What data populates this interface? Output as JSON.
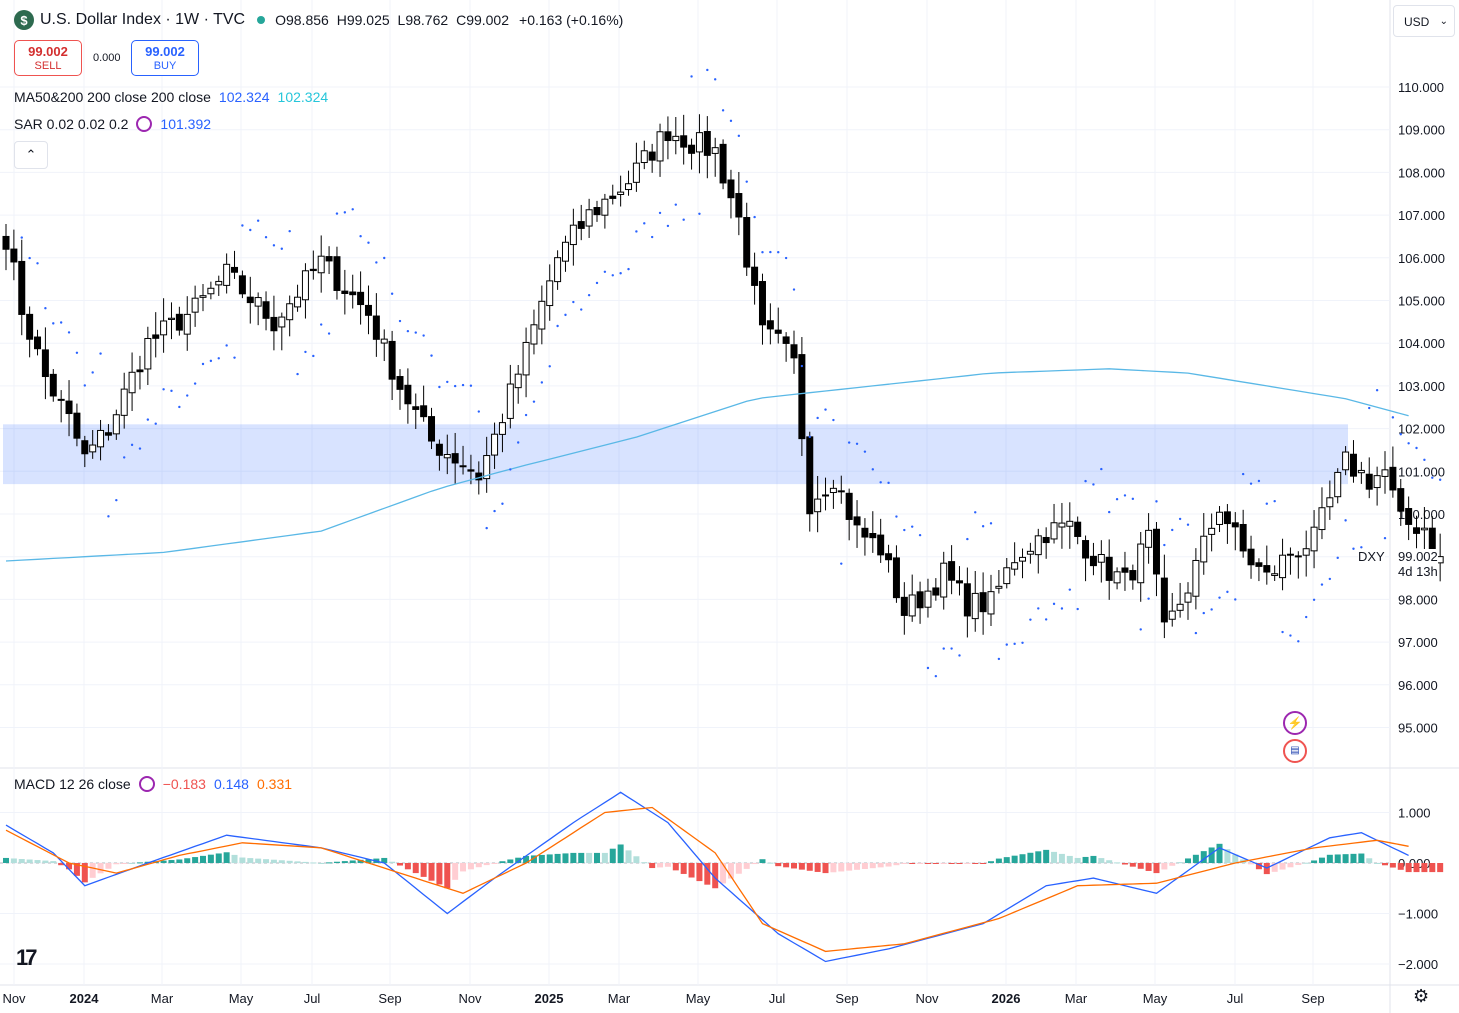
{
  "header": {
    "logo": "$",
    "symbol": "U.S. Dollar Index · 1W · TVC",
    "ohlc": {
      "o_label": "O",
      "o": "98.856",
      "h_label": "H",
      "h": "99.025",
      "l_label": "L",
      "l": "98.762",
      "c_label": "C",
      "c": "99.002"
    },
    "change": "+0.163 (+0.16%)"
  },
  "trade": {
    "sell_price": "99.002",
    "sell_label": "SELL",
    "spread": "0.000",
    "buy_price": "99.002",
    "buy_label": "BUY"
  },
  "indicators": {
    "ma": {
      "label": "MA50&200 200 close 200 close",
      "v1": "102.324",
      "v2": "102.324"
    },
    "sar": {
      "label": "SAR 0.02 0.02 0.2",
      "v": "101.392"
    },
    "macd": {
      "label": "MACD 12 26 close",
      "hist": "−0.183",
      "macd": "0.148",
      "signal": "0.331"
    }
  },
  "currency": "USD",
  "last": {
    "symbol": "DXY",
    "price": "99.002",
    "countdown": "4d 13h"
  },
  "colors": {
    "up": "#ffffff",
    "down": "#000000",
    "ma": "#5ab8e6",
    "sar": "#2962ff",
    "zone": "rgba(41,98,255,0.18)",
    "macd": "#2962ff",
    "signal": "#ff6d00",
    "hist_up_strong": "#26a69a",
    "hist_up_weak": "#b2dfdb",
    "hist_dn_strong": "#ef5350",
    "hist_dn_weak": "#ffcdd2"
  },
  "chart_data": {
    "type": "candlestick",
    "price_axis": {
      "ylim": [
        94.2,
        111.0
      ],
      "ticks": [
        "110.000",
        "109.000",
        "108.000",
        "107.000",
        "106.000",
        "105.000",
        "104.000",
        "103.000",
        "102.000",
        "101.000",
        "100.000",
        "99.000",
        "98.000",
        "97.000",
        "96.000",
        "95.000"
      ]
    },
    "macd_axis": {
      "ylim": [
        -2.1,
        1.6
      ],
      "ticks": [
        "1.000",
        "0.000",
        "−1.000",
        "−2.000"
      ]
    },
    "time_axis": [
      "Nov",
      "2024",
      "Mar",
      "May",
      "Jul",
      "Sep",
      "Nov",
      "2025",
      "Mar",
      "May",
      "Jul",
      "Sep",
      "Nov",
      "2026",
      "Mar",
      "May",
      "Jul",
      "Sep"
    ],
    "zone": {
      "from": 100.7,
      "to": 102.1
    },
    "close_anchors": [
      [
        0,
        106.5
      ],
      [
        2,
        104.8
      ],
      [
        5,
        103.2
      ],
      [
        8,
        102.2
      ],
      [
        10,
        101.3
      ],
      [
        13,
        102.0
      ],
      [
        18,
        104.0
      ],
      [
        24,
        104.8
      ],
      [
        28,
        105.6
      ],
      [
        34,
        104.5
      ],
      [
        40,
        105.9
      ],
      [
        46,
        104.7
      ],
      [
        50,
        103.0
      ],
      [
        54,
        101.7
      ],
      [
        58,
        101.2
      ],
      [
        60,
        100.9
      ],
      [
        62,
        101.8
      ],
      [
        66,
        103.8
      ],
      [
        70,
        106.0
      ],
      [
        74,
        107.0
      ],
      [
        79,
        107.8
      ],
      [
        84,
        109.0
      ],
      [
        87,
        108.7
      ],
      [
        90,
        108.5
      ],
      [
        93,
        106.9
      ],
      [
        96,
        104.2
      ],
      [
        98,
        104.0
      ],
      [
        100,
        103.5
      ],
      [
        102,
        100.3
      ],
      [
        105,
        100.9
      ],
      [
        108,
        99.6
      ],
      [
        111,
        99.2
      ],
      [
        114,
        97.7
      ],
      [
        117,
        98.2
      ],
      [
        119,
        98.6
      ],
      [
        122,
        97.9
      ],
      [
        125,
        97.9
      ],
      [
        128,
        99.0
      ],
      [
        132,
        99.6
      ],
      [
        135,
        99.7
      ],
      [
        139,
        98.8
      ],
      [
        142,
        98.4
      ],
      [
        145,
        99.4
      ],
      [
        147,
        97.2
      ],
      [
        150,
        98.3
      ],
      [
        154,
        100.2
      ],
      [
        157,
        99.1
      ],
      [
        160,
        98.5
      ],
      [
        163,
        99.1
      ],
      [
        166,
        99.4
      ],
      [
        170,
        101.2
      ],
      [
        173,
        100.8
      ],
      [
        175,
        101.0
      ],
      [
        177,
        99.8
      ],
      [
        180,
        99.7
      ],
      [
        182,
        99.0
      ]
    ],
    "ma200_anchors": [
      [
        0,
        98.9
      ],
      [
        20,
        99.1
      ],
      [
        40,
        99.6
      ],
      [
        55,
        100.6
      ],
      [
        65,
        101.1
      ],
      [
        80,
        101.8
      ],
      [
        95,
        102.7
      ],
      [
        110,
        103.0
      ],
      [
        125,
        103.3
      ],
      [
        140,
        103.4
      ],
      [
        150,
        103.3
      ],
      [
        160,
        103.0
      ],
      [
        170,
        102.7
      ],
      [
        178,
        102.3
      ]
    ],
    "macd_anchors": [
      [
        0,
        0.75
      ],
      [
        6,
        0.2
      ],
      [
        10,
        -0.45
      ],
      [
        18,
        0.0
      ],
      [
        28,
        0.55
      ],
      [
        40,
        0.3
      ],
      [
        48,
        0.0
      ],
      [
        56,
        -1.0
      ],
      [
        62,
        -0.3
      ],
      [
        72,
        0.8
      ],
      [
        78,
        1.4
      ],
      [
        84,
        0.8
      ],
      [
        90,
        -0.3
      ],
      [
        98,
        -1.4
      ],
      [
        104,
        -1.95
      ],
      [
        112,
        -1.7
      ],
      [
        124,
        -1.2
      ],
      [
        132,
        -0.45
      ],
      [
        138,
        -0.3
      ],
      [
        146,
        -0.6
      ],
      [
        154,
        0.3
      ],
      [
        160,
        -0.1
      ],
      [
        168,
        0.5
      ],
      [
        172,
        0.6
      ],
      [
        178,
        0.15
      ]
    ],
    "signal_anchors": [
      [
        0,
        0.65
      ],
      [
        8,
        0.0
      ],
      [
        14,
        -0.2
      ],
      [
        22,
        0.15
      ],
      [
        30,
        0.4
      ],
      [
        40,
        0.3
      ],
      [
        50,
        -0.2
      ],
      [
        58,
        -0.6
      ],
      [
        66,
        0.0
      ],
      [
        76,
        1.0
      ],
      [
        82,
        1.1
      ],
      [
        90,
        0.2
      ],
      [
        96,
        -1.2
      ],
      [
        104,
        -1.75
      ],
      [
        114,
        -1.6
      ],
      [
        126,
        -1.1
      ],
      [
        136,
        -0.45
      ],
      [
        146,
        -0.4
      ],
      [
        156,
        0.0
      ],
      [
        166,
        0.3
      ],
      [
        174,
        0.45
      ],
      [
        178,
        0.33
      ]
    ]
  }
}
